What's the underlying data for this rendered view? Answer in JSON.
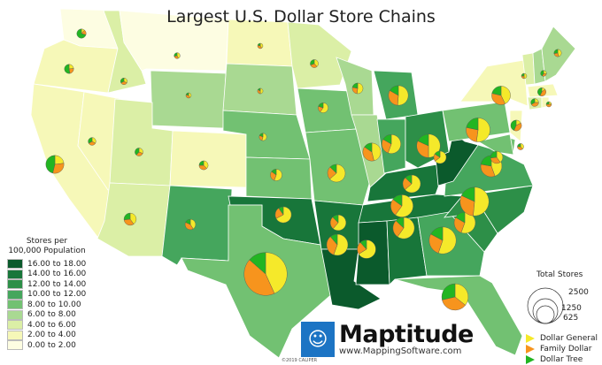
{
  "title": "Largest U.S. Dollar Store Chains",
  "legend": {
    "title_line1": "Stores per",
    "title_line2": "100,000 Population",
    "classes": [
      {
        "label": "16.00 to 18.00",
        "color": "#0b5a2c"
      },
      {
        "label": "14.00 to 16.00",
        "color": "#18763a"
      },
      {
        "label": "12.00 to 14.00",
        "color": "#2d8f48"
      },
      {
        "label": "10.00 to 12.00",
        "color": "#45a65d"
      },
      {
        "label": "8.00 to 10.00",
        "color": "#72c172"
      },
      {
        "label": "6.00 to 8.00",
        "color": "#a9d992"
      },
      {
        "label": "4.00 to 6.00",
        "color": "#dbefa6"
      },
      {
        "label": "2.00 to 4.00",
        "color": "#f6f8b8"
      },
      {
        "label": "0.00 to 2.00",
        "color": "#fdfde2"
      }
    ]
  },
  "size_legend": {
    "title": "Total Stores",
    "values": [
      "2500",
      "1250",
      "625"
    ]
  },
  "chains": [
    {
      "label": "Dollar General",
      "color": "#f5e92a"
    },
    {
      "label": "Family Dollar",
      "color": "#f7941d"
    },
    {
      "label": "Dollar Tree",
      "color": "#22b522"
    }
  ],
  "logo": {
    "name": "Maptitude",
    "url": "www.MappingSoftware.com",
    "copyright": "©2019 CALIPER"
  },
  "states": {
    "WA": {
      "cls": 8,
      "stores": [
        20,
        30,
        120
      ]
    },
    "OR": {
      "cls": 7,
      "stores": [
        40,
        40,
        90
      ]
    },
    "CA": {
      "cls": 7,
      "stores": [
        150,
        200,
        300
      ]
    },
    "NV": {
      "cls": 7,
      "stores": [
        40,
        40,
        40
      ]
    },
    "ID": {
      "cls": 6,
      "stores": [
        30,
        30,
        30
      ]
    },
    "MT": {
      "cls": 8,
      "stores": [
        30,
        20,
        20
      ]
    },
    "WY": {
      "cls": 5,
      "stores": [
        20,
        20,
        10
      ]
    },
    "UT": {
      "cls": 6,
      "stores": [
        40,
        40,
        50
      ]
    },
    "AZ": {
      "cls": 6,
      "stores": [
        120,
        100,
        80
      ]
    },
    "CO": {
      "cls": 7,
      "stores": [
        60,
        60,
        40
      ]
    },
    "NM": {
      "cls": 3,
      "stores": [
        90,
        90,
        40
      ]
    },
    "ND": {
      "cls": 7,
      "stores": [
        20,
        20,
        10
      ]
    },
    "SD": {
      "cls": 5,
      "stores": [
        30,
        20,
        10
      ]
    },
    "NE": {
      "cls": 4,
      "stores": [
        60,
        30,
        20
      ]
    },
    "KS": {
      "cls": 4,
      "stores": [
        150,
        80,
        40
      ]
    },
    "OK": {
      "cls": 1,
      "stores": [
        350,
        120,
        50
      ]
    },
    "TX": {
      "cls": 4,
      "stores": [
        1600,
        1600,
        500
      ]
    },
    "MN": {
      "cls": 6,
      "stores": [
        50,
        40,
        40
      ]
    },
    "IA": {
      "cls": 4,
      "stores": [
        120,
        40,
        40
      ]
    },
    "MO": {
      "cls": 4,
      "stores": [
        400,
        150,
        80
      ]
    },
    "AR": {
      "cls": 1,
      "stores": [
        300,
        130,
        60
      ]
    },
    "LA": {
      "cls": 0,
      "stores": [
        500,
        300,
        100
      ]
    },
    "WI": {
      "cls": 5,
      "stores": [
        120,
        60,
        50
      ]
    },
    "IL": {
      "cls": 5,
      "stores": [
        300,
        250,
        100
      ]
    },
    "MI": {
      "cls": 3,
      "stores": [
        400,
        250,
        130
      ]
    },
    "IN": {
      "cls": 3,
      "stores": [
        400,
        200,
        120
      ]
    },
    "OH": {
      "cls": 2,
      "stores": [
        550,
        350,
        200
      ]
    },
    "KY": {
      "cls": 1,
      "stores": [
        400,
        150,
        80
      ]
    },
    "TN": {
      "cls": 1,
      "stores": [
        600,
        250,
        150
      ]
    },
    "MS": {
      "cls": 0,
      "stores": [
        450,
        150,
        80
      ]
    },
    "AL": {
      "cls": 1,
      "stores": [
        550,
        250,
        120
      ]
    },
    "GA": {
      "cls": 3,
      "stores": [
        800,
        400,
        250
      ]
    },
    "FL": {
      "cls": 4,
      "stores": [
        500,
        500,
        400
      ]
    },
    "SC": {
      "cls": 2,
      "stores": [
        500,
        250,
        150
      ]
    },
    "NC": {
      "cls": 2,
      "stores": [
        850,
        500,
        300
      ]
    },
    "VA": {
      "cls": 3,
      "stores": [
        400,
        300,
        200
      ]
    },
    "WV": {
      "cls": 0,
      "stores": [
        200,
        60,
        50
      ]
    },
    "PA": {
      "cls": 4,
      "stores": [
        600,
        300,
        250
      ]
    },
    "NY": {
      "cls": 7,
      "stores": [
        300,
        250,
        150
      ]
    },
    "VT": {
      "cls": 6,
      "stores": [
        20,
        10,
        10
      ]
    },
    "NH": {
      "cls": 5,
      "stores": [
        20,
        20,
        30
      ]
    },
    "ME": {
      "cls": 5,
      "stores": [
        50,
        30,
        30
      ]
    },
    "MA": {
      "cls": 7,
      "stores": [
        20,
        60,
        60
      ]
    },
    "CT": {
      "cls": 6,
      "stores": [
        30,
        50,
        40
      ]
    },
    "RI": {
      "cls": 7,
      "stores": [
        10,
        20,
        10
      ]
    },
    "NJ": {
      "cls": 7,
      "stores": [
        40,
        90,
        100
      ]
    },
    "DE": {
      "cls": 4,
      "stores": [
        30,
        30,
        20
      ]
    },
    "MD": {
      "cls": 4,
      "stores": [
        120,
        100,
        80
      ]
    }
  }
}
